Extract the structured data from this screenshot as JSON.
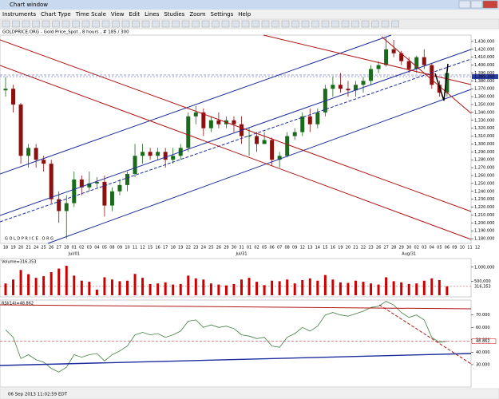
{
  "window": {
    "title": "Chart window",
    "menu": [
      "Instruments",
      "Chart Type",
      "Time Scale",
      "View",
      "Edit",
      "Lines",
      "Studies",
      "Zoom",
      "Settings",
      "Help"
    ],
    "status": "06 Sep 2013 11:02:59 EDT"
  },
  "chart_data": {
    "type": "candlestick",
    "title": "GOLDPRICE.ORG - Gold Price_Spot , 8 hours , # 185 / 300",
    "watermark": "G O L D P R I C E . O R G",
    "categories": [
      "18",
      "19",
      "20",
      "21",
      "24",
      "25",
      "26",
      "27",
      "28",
      "01",
      "02",
      "03",
      "04",
      "05",
      "08",
      "09",
      "10",
      "11",
      "12",
      "15",
      "16",
      "17",
      "18",
      "19",
      "22",
      "23",
      "24",
      "25",
      "26",
      "29",
      "30",
      "31",
      "01",
      "02",
      "05",
      "06",
      "07",
      "08",
      "09",
      "12",
      "13",
      "14",
      "15",
      "16",
      "19",
      "20",
      "21",
      "22",
      "23",
      "26",
      "27",
      "28",
      "29",
      "30",
      "02",
      "03",
      "04",
      "05",
      "06",
      "09",
      "10",
      "11",
      "12"
    ],
    "x_sublabels": [
      {
        "value": 9,
        "label": "Jul/01"
      },
      {
        "value": 31,
        "label": "Jul/31"
      },
      {
        "value": 53,
        "label": "Aug/31"
      }
    ],
    "ohlc": [
      [
        1368,
        1385,
        1360,
        1370
      ],
      [
        1370,
        1375,
        1340,
        1350
      ],
      [
        1350,
        1352,
        1275,
        1285
      ],
      [
        1285,
        1300,
        1270,
        1295
      ],
      [
        1295,
        1300,
        1270,
        1280
      ],
      [
        1280,
        1285,
        1265,
        1275
      ],
      [
        1275,
        1280,
        1225,
        1230
      ],
      [
        1230,
        1240,
        1200,
        1215
      ],
      [
        1215,
        1235,
        1180,
        1225
      ],
      [
        1225,
        1265,
        1220,
        1255
      ],
      [
        1255,
        1260,
        1235,
        1245
      ],
      [
        1245,
        1265,
        1240,
        1250
      ],
      [
        1250,
        1258,
        1245,
        1252
      ],
      [
        1252,
        1260,
        1208,
        1222
      ],
      [
        1222,
        1245,
        1215,
        1240
      ],
      [
        1240,
        1255,
        1235,
        1248
      ],
      [
        1248,
        1265,
        1240,
        1262
      ],
      [
        1262,
        1300,
        1258,
        1285
      ],
      [
        1285,
        1300,
        1275,
        1290
      ],
      [
        1290,
        1295,
        1280,
        1285
      ],
      [
        1285,
        1295,
        1280,
        1290
      ],
      [
        1290,
        1295,
        1270,
        1280
      ],
      [
        1280,
        1295,
        1275,
        1285
      ],
      [
        1285,
        1300,
        1280,
        1295
      ],
      [
        1295,
        1340,
        1290,
        1335
      ],
      [
        1335,
        1348,
        1325,
        1340
      ],
      [
        1340,
        1345,
        1310,
        1320
      ],
      [
        1320,
        1335,
        1315,
        1330
      ],
      [
        1330,
        1340,
        1320,
        1325
      ],
      [
        1325,
        1335,
        1320,
        1330
      ],
      [
        1330,
        1335,
        1315,
        1325
      ],
      [
        1325,
        1335,
        1300,
        1310
      ],
      [
        1310,
        1320,
        1285,
        1310
      ],
      [
        1310,
        1315,
        1290,
        1300
      ],
      [
        1300,
        1315,
        1300,
        1305
      ],
      [
        1305,
        1308,
        1272,
        1280
      ],
      [
        1280,
        1290,
        1270,
        1285
      ],
      [
        1285,
        1315,
        1283,
        1310
      ],
      [
        1310,
        1320,
        1305,
        1315
      ],
      [
        1315,
        1340,
        1310,
        1335
      ],
      [
        1335,
        1345,
        1315,
        1325
      ],
      [
        1325,
        1345,
        1320,
        1340
      ],
      [
        1340,
        1375,
        1335,
        1370
      ],
      [
        1370,
        1385,
        1360,
        1375
      ],
      [
        1375,
        1390,
        1365,
        1370
      ],
      [
        1370,
        1380,
        1360,
        1368
      ],
      [
        1368,
        1380,
        1360,
        1375
      ],
      [
        1375,
        1385,
        1365,
        1380
      ],
      [
        1380,
        1400,
        1375,
        1395
      ],
      [
        1395,
        1405,
        1390,
        1400
      ],
      [
        1400,
        1435,
        1398,
        1420
      ],
      [
        1420,
        1432,
        1410,
        1415
      ],
      [
        1415,
        1418,
        1400,
        1405
      ],
      [
        1405,
        1410,
        1390,
        1395
      ],
      [
        1395,
        1412,
        1390,
        1410
      ],
      [
        1410,
        1420,
        1395,
        1400
      ],
      [
        1400,
        1402,
        1370,
        1375
      ],
      [
        1375,
        1380,
        1360,
        1365
      ],
      [
        1365,
        1395,
        1360,
        1390
      ],
      null,
      null,
      null,
      null
    ],
    "up_color": "#1a6b1a",
    "down_color": "#8b1010",
    "ylim": [
      1174,
      1438
    ],
    "yticks": [
      {
        "value": 1180,
        "label": "1,180.000"
      },
      {
        "value": 1190,
        "label": "1,190.000"
      },
      {
        "value": 1200,
        "label": "1,200.000"
      },
      {
        "value": 1210,
        "label": "1,210.000"
      },
      {
        "value": 1220,
        "label": "1,220.000"
      },
      {
        "value": 1230,
        "label": "1,230.000"
      },
      {
        "value": 1240,
        "label": "1,240.000"
      },
      {
        "value": 1250,
        "label": "1,250.000"
      },
      {
        "value": 1260,
        "label": "1,260.000"
      },
      {
        "value": 1270,
        "label": "1,270.000"
      },
      {
        "value": 1280,
        "label": "1,280.000"
      },
      {
        "value": 1290,
        "label": "1,290.000"
      },
      {
        "value": 1300,
        "label": "1,300.000"
      },
      {
        "value": 1310,
        "label": "1,310.000"
      },
      {
        "value": 1320,
        "label": "1,320.000"
      },
      {
        "value": 1330,
        "label": "1,330.000"
      },
      {
        "value": 1340,
        "label": "1,340.000"
      },
      {
        "value": 1350,
        "label": "1,350.000"
      },
      {
        "value": 1360,
        "label": "1,360.000"
      },
      {
        "value": 1370,
        "label": "1,370.000"
      },
      {
        "value": 1380,
        "label": "1,380.000"
      },
      {
        "value": 1390,
        "label": "1,390.000"
      },
      {
        "value": 1400,
        "label": "1,400.000"
      },
      {
        "value": 1410,
        "label": "1,410.000"
      },
      {
        "value": 1420,
        "label": "1,420.000"
      },
      {
        "value": 1430,
        "label": "1,430.000"
      }
    ],
    "current_price": {
      "value": 1385.35,
      "label": "1,385.350"
    },
    "volume": {
      "label": "Volume=316,353",
      "color": "#cc0000",
      "ylim": [
        0,
        1250000
      ],
      "yticks": [
        {
          "value": 1000000,
          "label": "1,000,000"
        },
        {
          "value": 500000,
          "label": "500,000"
        }
      ],
      "current": {
        "value": 316353,
        "label": "316,353"
      },
      "values": [
        420000,
        560000,
        900000,
        750000,
        620000,
        680000,
        820000,
        950000,
        1050000,
        700000,
        520000,
        480000,
        200000,
        640000,
        560000,
        500000,
        520000,
        760000,
        620000,
        400000,
        420000,
        460000,
        380000,
        400000,
        700000,
        600000,
        560000,
        420000,
        380000,
        350000,
        400000,
        560000,
        620000,
        480000,
        360000,
        520000,
        500000,
        560000,
        420000,
        540000,
        600000,
        520000,
        720000,
        560000,
        460000,
        440000,
        520000,
        480000,
        420000,
        380000,
        640000,
        500000,
        460000,
        400000,
        420000,
        520000,
        600000,
        540000,
        316353,
        null,
        null,
        null,
        null
      ]
    },
    "rsi": {
      "label": "RSI(14)=48.862",
      "color": "#3f7f3f",
      "ylim": [
        12,
        82
      ],
      "yticks": [
        {
          "value": 70,
          "label": "70.000"
        },
        {
          "value": 60,
          "label": "60.000"
        },
        {
          "value": 50,
          "label": "50.000"
        },
        {
          "value": 40,
          "label": "40.000"
        },
        {
          "value": 30,
          "label": "30.000"
        }
      ],
      "current": {
        "value": 48.862,
        "label": "48.862"
      },
      "values": [
        58,
        52,
        35,
        38,
        34,
        32,
        27,
        24,
        28,
        38,
        36,
        38,
        39,
        33,
        38,
        41,
        45,
        54,
        56,
        54,
        55,
        52,
        54,
        57,
        65,
        66,
        60,
        62,
        60,
        61,
        59,
        54,
        53,
        51,
        52,
        45,
        44,
        52,
        55,
        60,
        57,
        61,
        70,
        72,
        70,
        69,
        71,
        73,
        76,
        77,
        81,
        78,
        72,
        68,
        70,
        66,
        52,
        48,
        48.862,
        null,
        null,
        null,
        null
      ]
    }
  }
}
